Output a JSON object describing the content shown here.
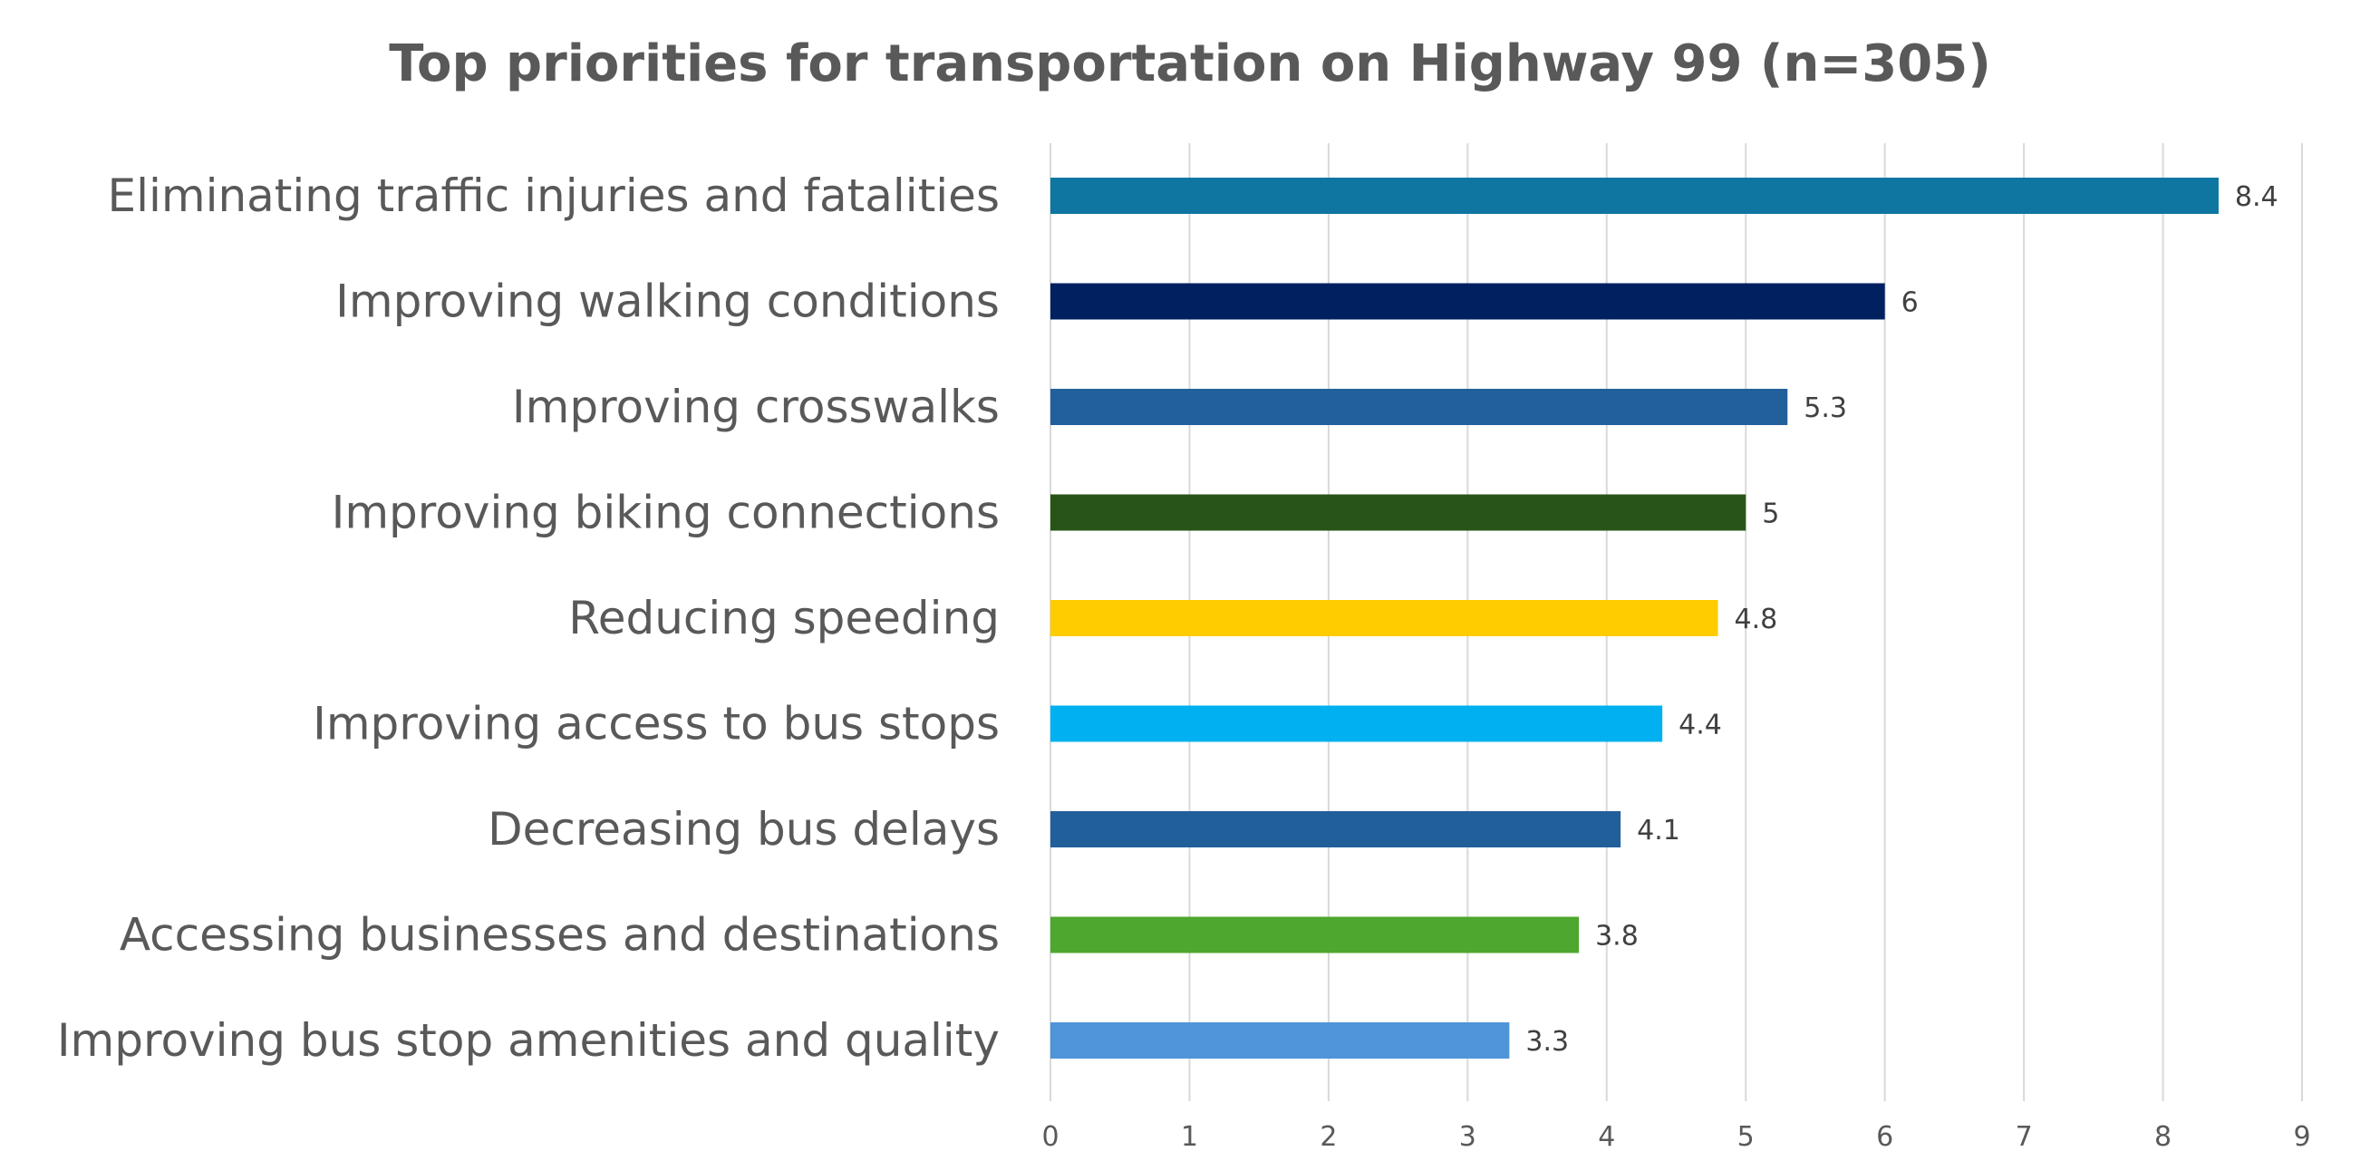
{
  "chart_data": {
    "type": "bar",
    "orientation": "horizontal",
    "title": "Top priorities for transportation on Highway 99 (n=305)",
    "xlabel": "",
    "ylabel": "",
    "xlim": [
      0,
      9
    ],
    "x_ticks": [
      0,
      1,
      2,
      3,
      4,
      5,
      6,
      7,
      8,
      9
    ],
    "grid": true,
    "legend": "none",
    "categories": [
      "Eliminating traffic injuries and fatalities",
      "Improving walking conditions",
      "Improving crosswalks",
      "Improving biking connections",
      "Reducing speeding",
      "Improving access to bus stops",
      "Decreasing bus delays",
      "Accessing businesses and destinations",
      "Improving bus stop amenities and quality"
    ],
    "values": [
      8.4,
      6,
      5.3,
      5,
      4.8,
      4.4,
      4.1,
      3.8,
      3.3
    ],
    "data_labels": [
      "8.4",
      "6",
      "5.3",
      "5",
      "4.8",
      "4.4",
      "4.1",
      "3.8",
      "3.3"
    ],
    "colors": [
      "#0E76A0",
      "#002060",
      "#22609C",
      "#295418",
      "#FFCC00",
      "#00B0F0",
      "#215F9A",
      "#4EA72E",
      "#4F95D9"
    ]
  }
}
